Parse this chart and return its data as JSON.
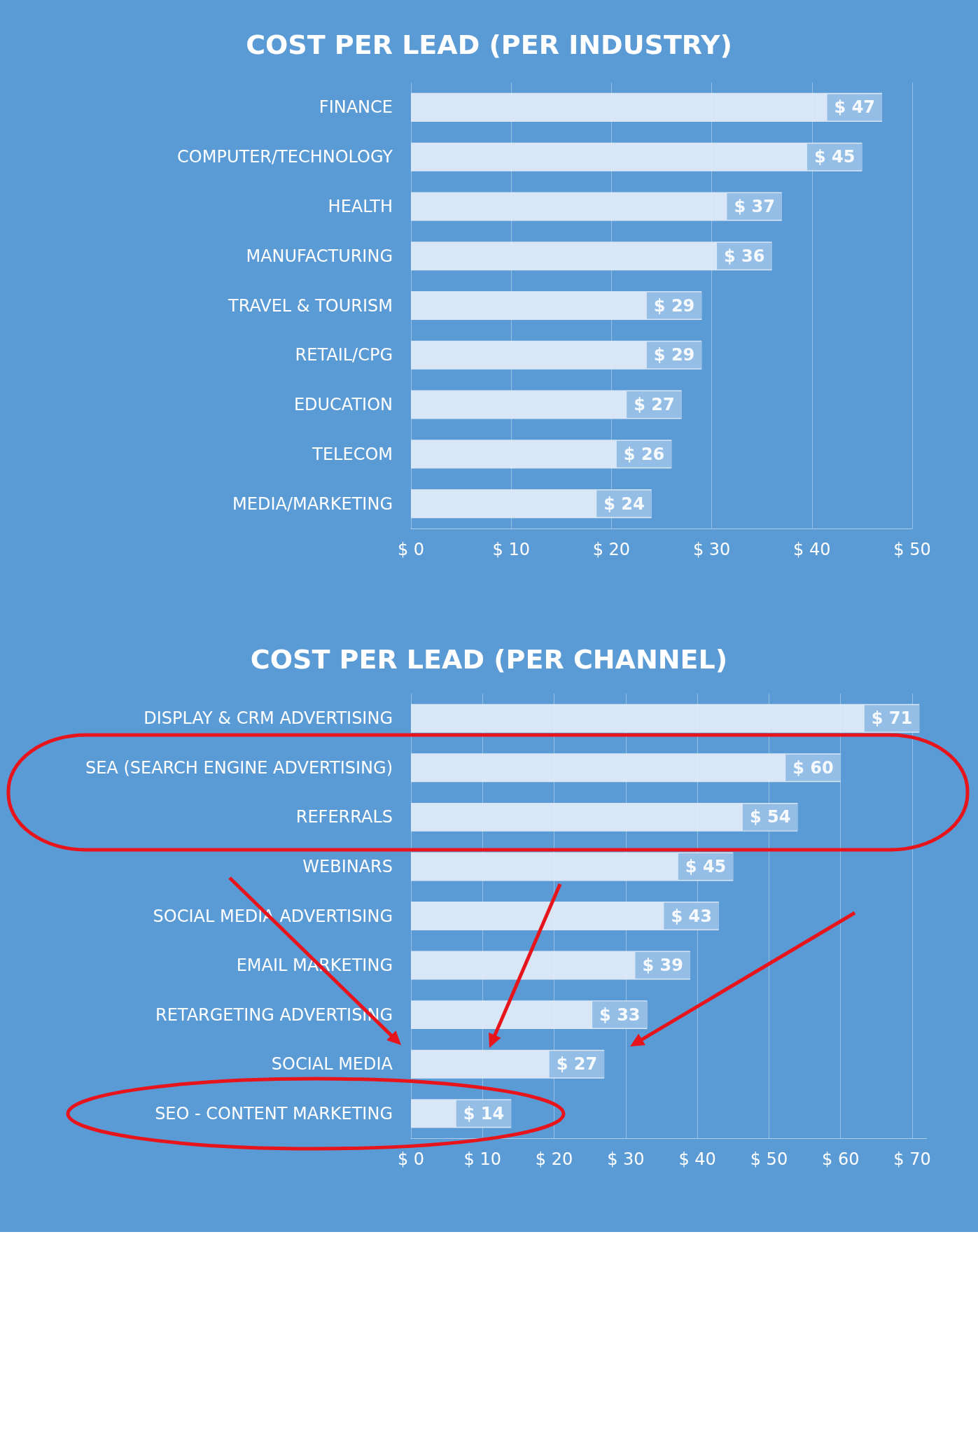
{
  "chart_data": [
    {
      "type": "bar",
      "orientation": "horizontal",
      "title": "COST PER LEAD (PER INDUSTRY)",
      "categories": [
        "FINANCE",
        "COMPUTER/TECHNOLOGY",
        "HEALTH",
        "MANUFACTURING",
        "TRAVEL & TOURISM",
        "RETAIL/CPG",
        "EDUCATION",
        "TELECOM",
        "MEDIA/MARKETING"
      ],
      "values": [
        47,
        45,
        37,
        36,
        29,
        29,
        27,
        26,
        24
      ],
      "value_labels": [
        "$ 47",
        "$ 45",
        "$ 37",
        "$ 36",
        "$ 29",
        "$ 29",
        "$ 27",
        "$ 26",
        "$ 24"
      ],
      "color": "#e3edf8",
      "xlim": [
        0,
        50
      ],
      "xticks": [
        {
          "value": 0,
          "label": "$ 0"
        },
        {
          "value": 10,
          "label": "$ 10"
        },
        {
          "value": 20,
          "label": "$ 20"
        },
        {
          "value": 30,
          "label": "$ 30"
        },
        {
          "value": 40,
          "label": "$ 40"
        },
        {
          "value": 50,
          "label": "$ 50"
        }
      ],
      "grid": "x"
    },
    {
      "type": "bar",
      "orientation": "horizontal",
      "title": "COST PER LEAD (PER CHANNEL)",
      "categories": [
        "DISPLAY & CRM ADVERTISING",
        "SEA (SEARCH ENGINE ADVERTISING)",
        "REFERRALS",
        "WEBINARS",
        "SOCIAL MEDIA ADVERTISING",
        "EMAIL MARKETING",
        "RETARGETING ADVERTISING",
        "SOCIAL MEDIA",
        "SEO - CONTENT MARKETING"
      ],
      "values": [
        71,
        60,
        54,
        45,
        43,
        39,
        33,
        27,
        14
      ],
      "value_labels": [
        "$ 71",
        "$ 60",
        "$ 54",
        "$ 45",
        "$ 43",
        "$ 39",
        "$ 33",
        "$ 27",
        "$ 14"
      ],
      "color": "#e3edf8",
      "xlim": [
        0,
        72
      ],
      "xticks": [
        {
          "value": 0,
          "label": "$ 0"
        },
        {
          "value": 10,
          "label": "$ 10"
        },
        {
          "value": 20,
          "label": "$ 20"
        },
        {
          "value": 30,
          "label": "$ 30"
        },
        {
          "value": 40,
          "label": "$ 40"
        },
        {
          "value": 50,
          "label": "$ 50"
        },
        {
          "value": 60,
          "label": "$ 60"
        },
        {
          "value": 70,
          "label": "$ 70"
        }
      ],
      "grid": "x"
    }
  ]
}
